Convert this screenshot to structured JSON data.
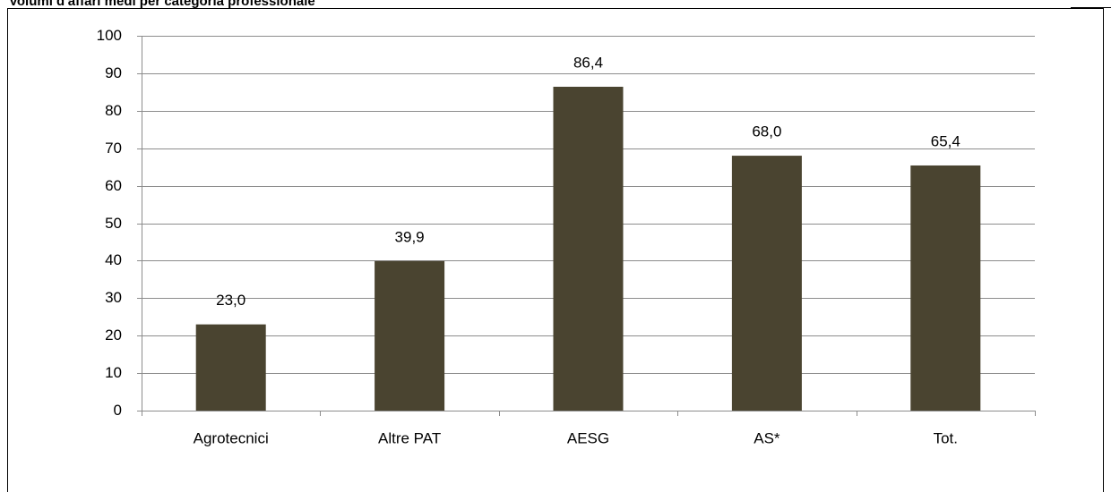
{
  "chart_data": {
    "type": "bar",
    "title": "Volumi d'affari medi per categoria professionale",
    "categories": [
      "Agrotecnici",
      "Altre PAT",
      "AESG",
      "AS*",
      "Tot."
    ],
    "values": [
      23.0,
      39.9,
      86.4,
      68.0,
      65.4
    ],
    "value_labels": [
      "23,0",
      "39,9",
      "86,4",
      "68,0",
      "65,4"
    ],
    "color": "#4a4430",
    "ylim": [
      0,
      100
    ],
    "yticks": [
      0,
      10,
      20,
      30,
      40,
      50,
      60,
      70,
      80,
      90,
      100
    ],
    "grid": true
  }
}
